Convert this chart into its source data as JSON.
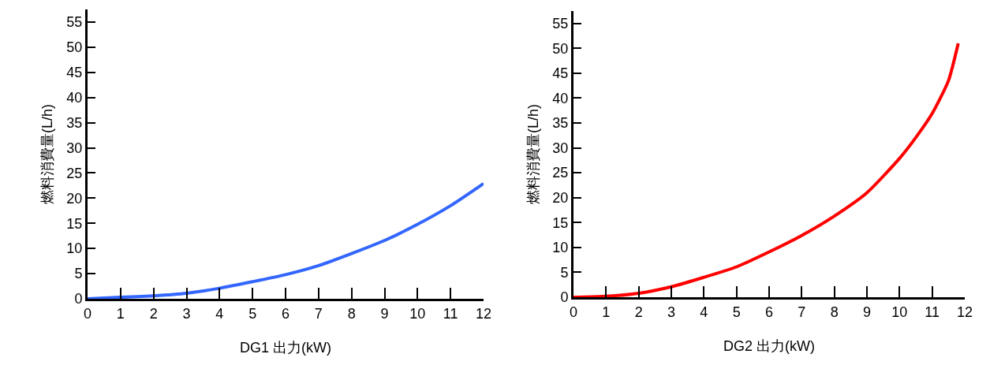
{
  "chart_data": [
    {
      "type": "line",
      "xlabel": "DG1 出力(kW)",
      "ylabel": "燃料消費量(L/h)",
      "x": [
        0,
        1,
        2,
        3,
        4,
        5,
        6,
        7,
        8,
        9,
        10,
        11,
        12
      ],
      "series": [
        {
          "color": "#3366ff",
          "values": [
            0,
            0.3,
            0.6,
            1.1,
            2.1,
            3.4,
            4.8,
            6.6,
            9.0,
            11.6,
            14.8,
            18.5,
            22.9
          ]
        }
      ],
      "xlim": [
        0,
        12
      ],
      "ylim": [
        0,
        57.5
      ],
      "xticks": [
        0,
        1,
        2,
        3,
        4,
        5,
        6,
        7,
        8,
        9,
        10,
        11,
        12
      ],
      "yticks": [
        0,
        5,
        10,
        15,
        20,
        25,
        30,
        35,
        40,
        45,
        50,
        55
      ]
    },
    {
      "type": "line",
      "xlabel": "DG2 出力(kW)",
      "ylabel": "燃料消費量(L/h)",
      "x": [
        0,
        1,
        2,
        3,
        4,
        5,
        6,
        7,
        8,
        9,
        10,
        10.5,
        11,
        11.5,
        11.8
      ],
      "series": [
        {
          "color": "#ff0000",
          "values": [
            0,
            0.2,
            0.8,
            2.1,
            4.0,
            6.1,
            9.1,
            12.4,
            16.3,
            21.0,
            27.9,
            32.1,
            36.9,
            43.5,
            51.0
          ]
        }
      ],
      "xlim": [
        0,
        12
      ],
      "ylim": [
        0,
        57.5
      ],
      "xticks": [
        0,
        1,
        2,
        3,
        4,
        5,
        6,
        7,
        8,
        9,
        10,
        11,
        12
      ],
      "yticks": [
        0,
        5,
        10,
        15,
        20,
        25,
        30,
        35,
        40,
        45,
        50,
        55
      ]
    }
  ]
}
